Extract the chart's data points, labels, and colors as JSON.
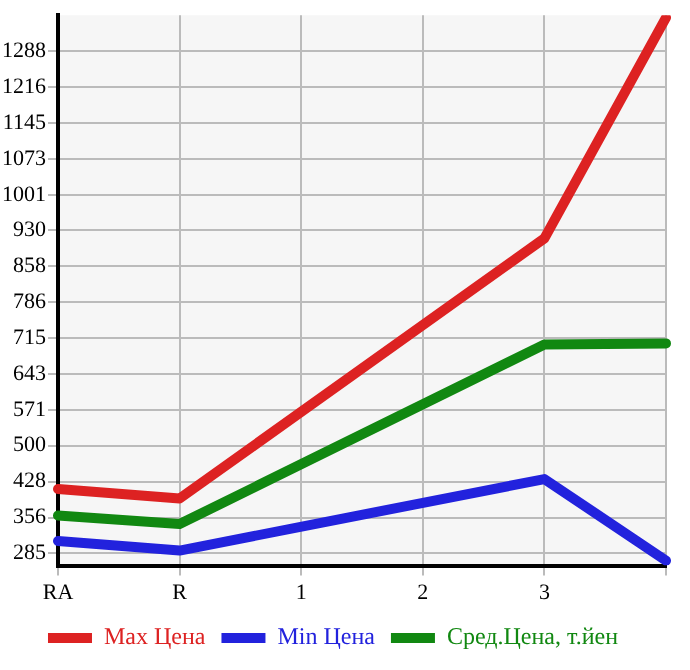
{
  "chart_data": {
    "type": "line",
    "categories": [
      "RA",
      "R",
      "1",
      "2",
      "3",
      null
    ],
    "series": [
      {
        "name": "Max Цена",
        "color": "#dd2222",
        "values": [
          413,
          394,
          null,
          null,
          914,
          1355
        ]
      },
      {
        "name": "Min Цена",
        "color": "#2222dd",
        "values": [
          309,
          290,
          null,
          null,
          433,
          270
        ]
      },
      {
        "name": "Сред.Цена, т.йен",
        "color": "#118811",
        "values": [
          360,
          343,
          null,
          null,
          702,
          704
        ]
      }
    ],
    "ylim": [
      260,
      1360
    ],
    "yticks": [
      285,
      356,
      428,
      500,
      571,
      643,
      715,
      786,
      858,
      930,
      1001,
      1073,
      1145,
      1216,
      1288
    ],
    "grid": true,
    "legend": "bottom",
    "marker": "none",
    "line_style": "solid"
  }
}
